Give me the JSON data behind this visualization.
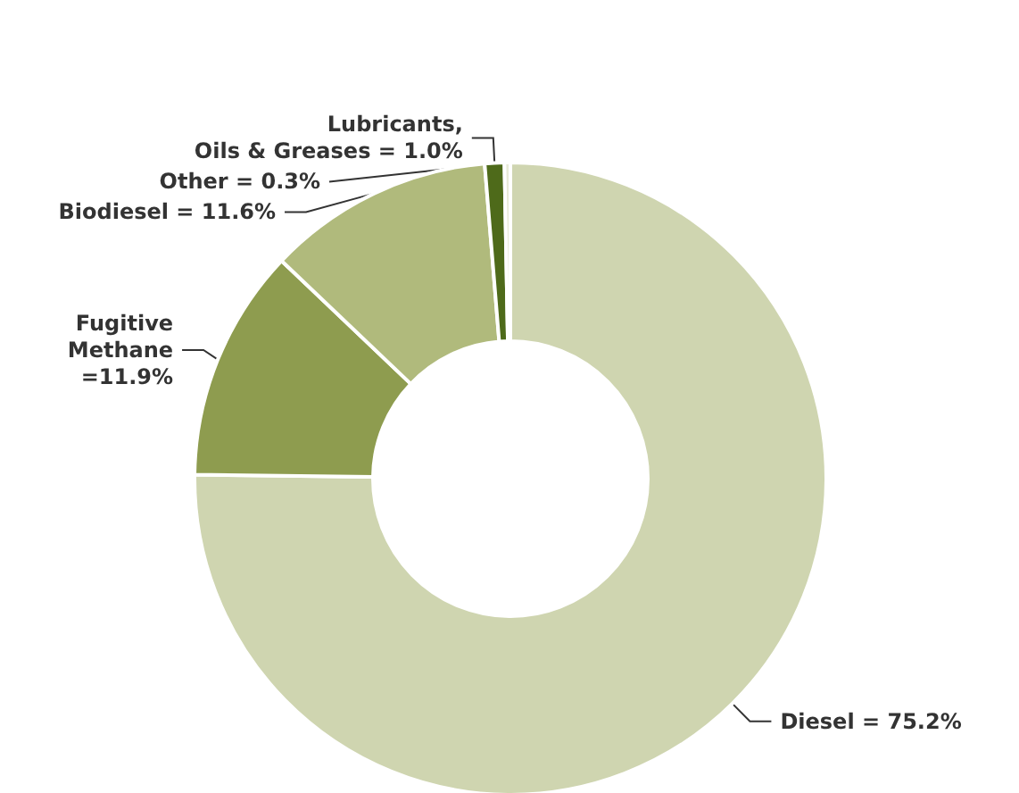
{
  "chart_data": {
    "type": "donut",
    "categories": [
      "Diesel",
      "Fugitive Methane",
      "Biodiesel",
      "Lubricants, Oils & Greases",
      "Other"
    ],
    "values": [
      75.2,
      11.9,
      11.6,
      1.0,
      0.3
    ],
    "colors": [
      "#cfd5b0",
      "#8e9c4f",
      "#b0ba7c",
      "#4e6a1a",
      "#e8ead8"
    ],
    "value_labels": [
      "= 75.2%",
      "=11.9%",
      "= 11.6%",
      "= 1.0%",
      "= 0.3%"
    ],
    "legend": false
  }
}
